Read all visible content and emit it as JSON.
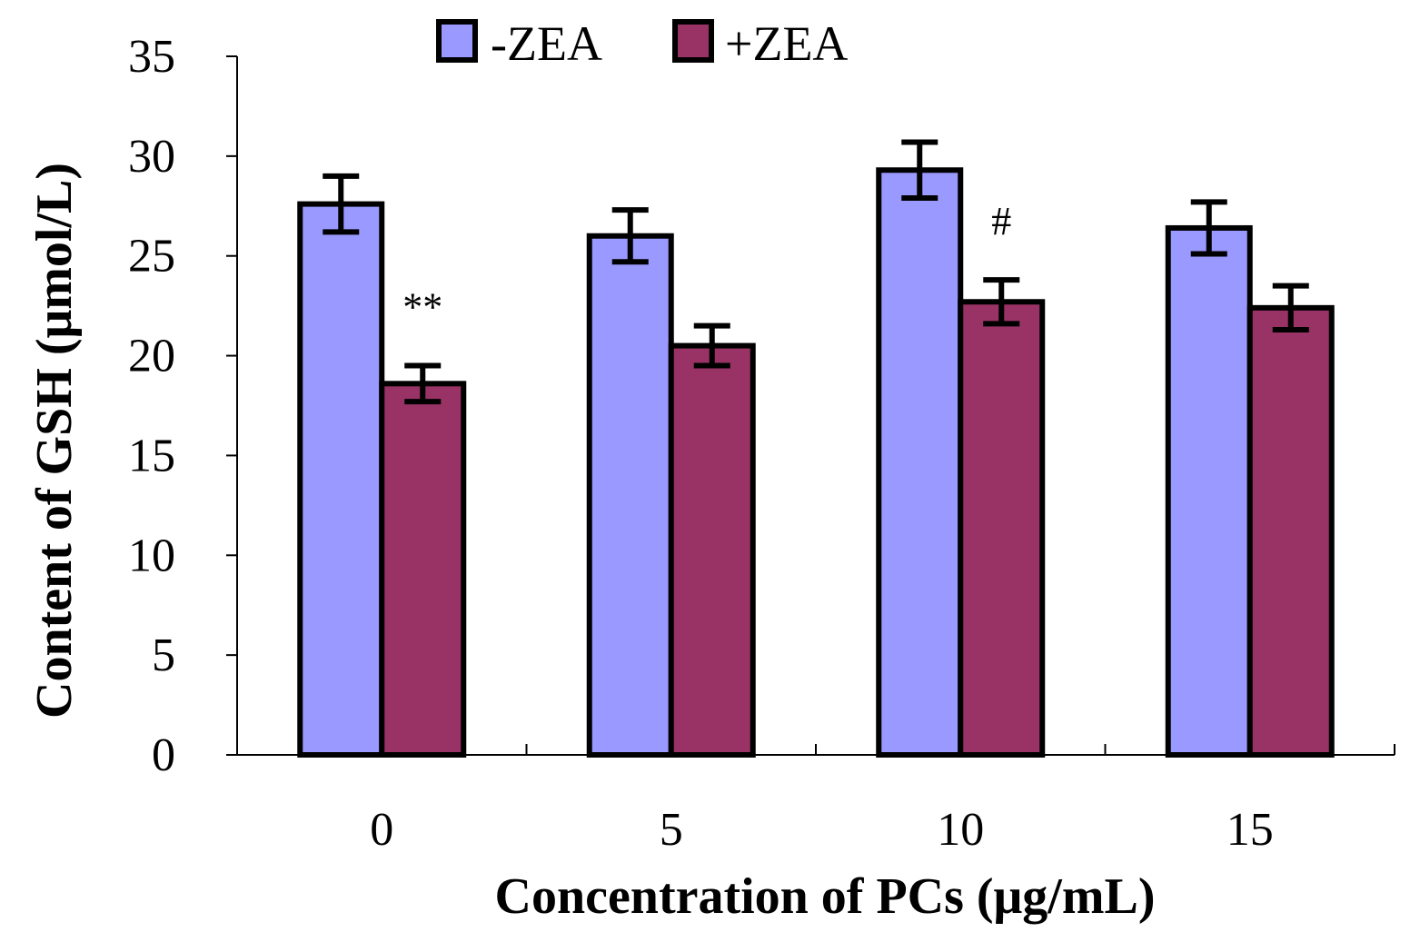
{
  "chart_data": {
    "type": "bar",
    "title": "",
    "xlabel": "Concentration of PCs (μg/mL)",
    "ylabel": "Content of GSH (μmol/L)",
    "categories": [
      "0",
      "5",
      "10",
      "15"
    ],
    "ylim": [
      0,
      35
    ],
    "yticks": [
      0,
      5,
      10,
      15,
      20,
      25,
      30,
      35
    ],
    "ytick_labels": [
      "0",
      "5",
      "10",
      "15",
      "20",
      "25",
      "30",
      "35"
    ],
    "grid": false,
    "legend_position": "top",
    "series": [
      {
        "name": "-ZEA",
        "color": "#9999ff",
        "values": [
          27.6,
          26.0,
          29.3,
          26.4
        ],
        "errors": [
          1.4,
          1.3,
          1.4,
          1.3
        ]
      },
      {
        "name": "+ZEA",
        "color": "#993366",
        "values": [
          18.6,
          20.5,
          22.7,
          22.4
        ],
        "errors": [
          0.9,
          1.0,
          1.1,
          1.1
        ]
      }
    ],
    "annotations": [
      {
        "text": "**",
        "category": "0",
        "series": "+ZEA"
      },
      {
        "text": "#",
        "category": "10",
        "series": "+ZEA"
      }
    ]
  }
}
